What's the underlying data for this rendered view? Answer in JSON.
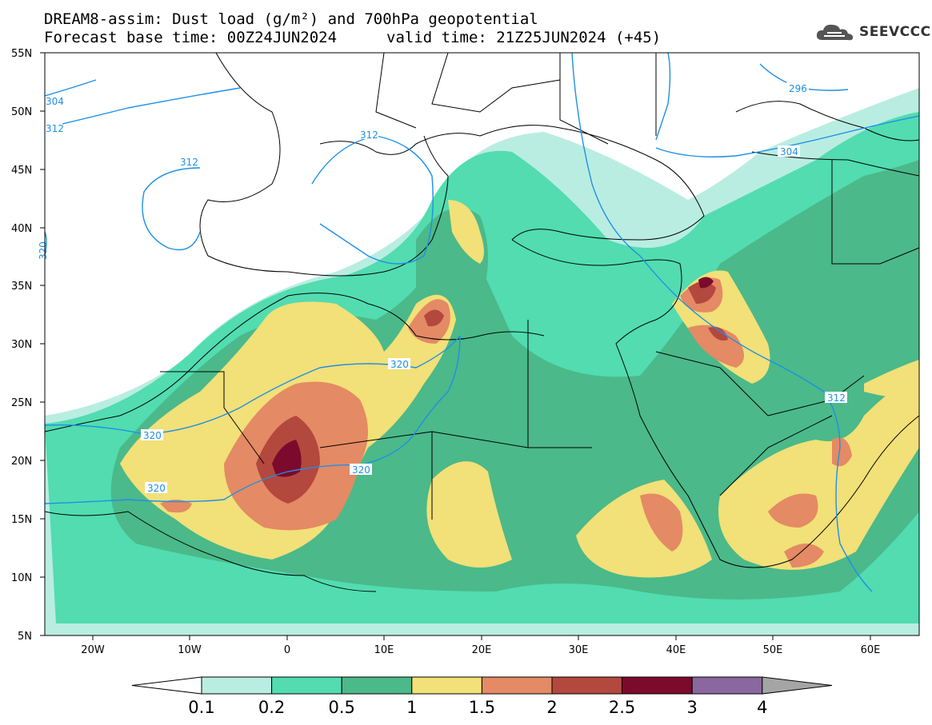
{
  "header": {
    "title_line1": "DREAM8-assim: Dust load (g/m²) and 700hPa geopotential",
    "forecast_base": "Forecast base time: 00Z24JUN2024",
    "valid_time": "valid time: 21Z25JUN2024 (+45)",
    "logo_text": "SEEVCCC"
  },
  "axes": {
    "lat_labels": [
      "55N",
      "50N",
      "45N",
      "40N",
      "35N",
      "30N",
      "25N",
      "20N",
      "15N",
      "10N",
      "5N"
    ],
    "lon_labels": [
      "20W",
      "10W",
      "0",
      "10E",
      "20E",
      "30E",
      "40E",
      "50E",
      "60E"
    ]
  },
  "colorbar": {
    "labels": [
      "0.1",
      "0.2",
      "0.5",
      "1",
      "1.5",
      "2",
      "2.5",
      "3",
      "4"
    ],
    "colors": [
      "#b9ede2",
      "#52dcb0",
      "#4bb989",
      "#f2e078",
      "#e48a64",
      "#b3483e",
      "#7c0a2c",
      "#8a679e",
      "#a5a5a5"
    ]
  },
  "contours": {
    "color": "#1e90e6",
    "labels": [
      "304",
      "312",
      "312",
      "312",
      "320",
      "320",
      "320",
      "320",
      "320",
      "304",
      "296",
      "312"
    ]
  }
}
